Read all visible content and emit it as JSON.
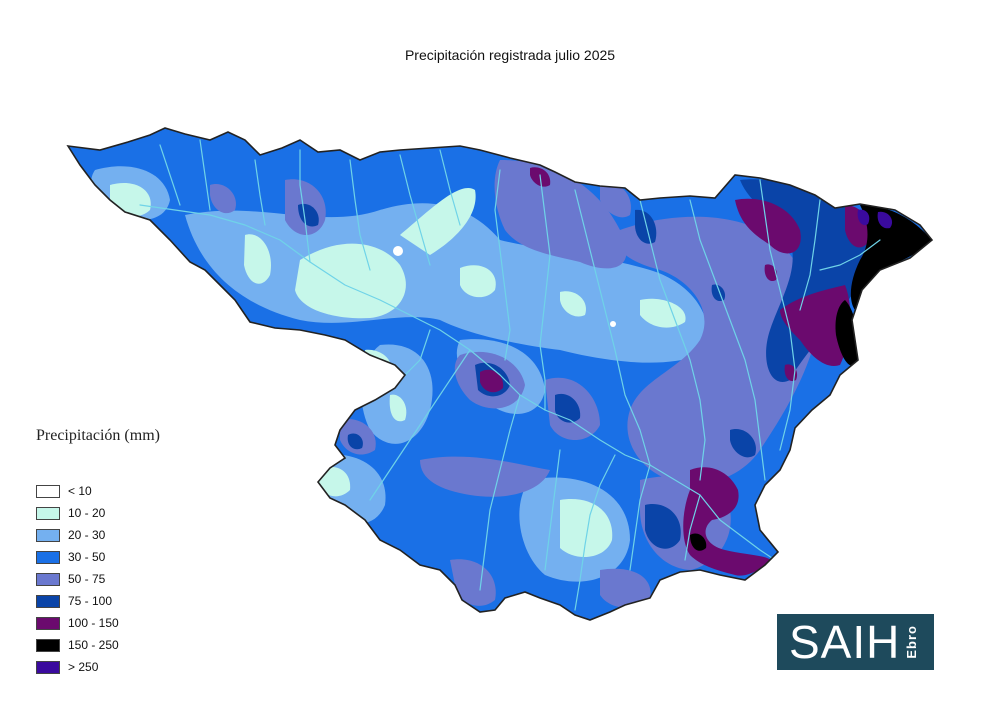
{
  "title": "Precipitación registrada julio 2025",
  "legend": {
    "title": "Precipitación (mm)",
    "items": [
      {
        "label": "< 10",
        "color": "#ffffff"
      },
      {
        "label": "10 - 20",
        "color": "#c6f7ea"
      },
      {
        "label": "20 - 30",
        "color": "#74b0f0"
      },
      {
        "label": "30 - 50",
        "color": "#1a70e6"
      },
      {
        "label": "50 - 75",
        "color": "#6a78cf"
      },
      {
        "label": "75 - 100",
        "color": "#0a44a8"
      },
      {
        "label": "100 - 150",
        "color": "#6b0a6e"
      },
      {
        "label": "150 - 250",
        "color": "#000000"
      },
      {
        "label": "> 250",
        "color": "#3a0a9e"
      }
    ]
  },
  "logo": {
    "main": "SAIH",
    "sub": "Ebro"
  },
  "colors": {
    "river": "#6fd3e8",
    "border": "#222222",
    "logo_bg": "#1e4a5c"
  }
}
